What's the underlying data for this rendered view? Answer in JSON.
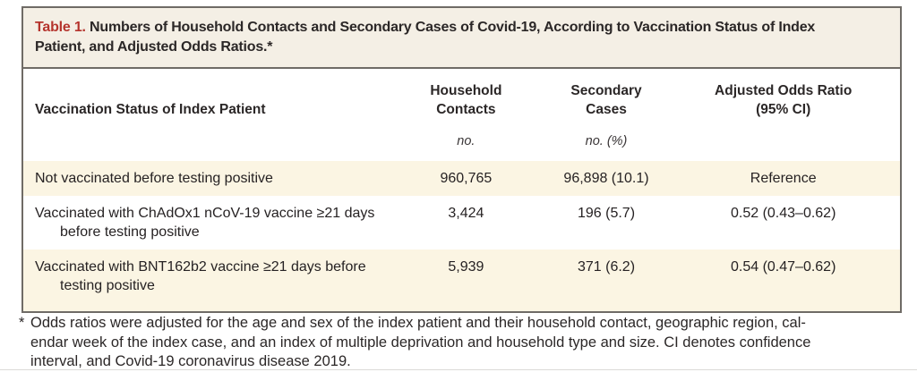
{
  "table": {
    "title": {
      "label": "Table 1.",
      "line1": "Numbers of Household Contacts and Secondary Cases of Covid-19, According to Vaccination Status of Index",
      "line2": "Patient, and Adjusted Odds Ratios.*"
    },
    "columns": {
      "col1": "Vaccination Status of Index Patient",
      "col2_line1": "Household",
      "col2_line2": "Contacts",
      "col3_line1": "Secondary",
      "col3_line2": "Cases",
      "col4_line1": "Adjusted Odds Ratio",
      "col4_line2": "(95% CI)",
      "col2_unit": "no.",
      "col3_unit": "no. (%)"
    },
    "rows": [
      {
        "label_line1": "Not vaccinated before testing positive",
        "label_line2": "",
        "contacts": "960,765",
        "secondary": "96,898 (10.1)",
        "odds": "Reference"
      },
      {
        "label_line1": "Vaccinated with ChAdOx1 nCoV-19 vaccine ≥21 days",
        "label_line2": "before testing positive",
        "contacts": "3,424",
        "secondary": "196 (5.7)",
        "odds": "0.52 (0.43–0.62)"
      },
      {
        "label_line1": "Vaccinated with BNT162b2 vaccine ≥21 days before",
        "label_line2": "testing positive",
        "contacts": "5,939",
        "secondary": "371 (6.2)",
        "odds": "0.54 (0.47–0.62)"
      }
    ]
  },
  "footnote": {
    "marker": "*",
    "line1": "Odds ratios were adjusted for the age and sex of the index patient and their household contact, geographic region, cal-",
    "line2": "endar week of the index case, and an index of multiple deprivation and household type and size. CI denotes confidence",
    "line3": "interval, and Covid-19 coronavirus disease 2019."
  },
  "colors": {
    "accent_red": "#b5342d",
    "title_band_bg": "#f4efe5",
    "row_shade_bg": "#fbf5e3",
    "border_gray": "#6f6b66"
  },
  "chart_data": {
    "type": "table",
    "title": "Table 1. Numbers of Household Contacts and Secondary Cases of Covid-19, According to Vaccination Status of Index Patient, and Adjusted Odds Ratios.*",
    "columns": [
      "Vaccination Status of Index Patient",
      "Household Contacts (no.)",
      "Secondary Cases (no. (%))",
      "Adjusted Odds Ratio (95% CI)"
    ],
    "rows": [
      [
        "Not vaccinated before testing positive",
        "960,765",
        "96,898 (10.1)",
        "Reference"
      ],
      [
        "Vaccinated with ChAdOx1 nCoV-19 vaccine ≥21 days before testing positive",
        "3,424",
        "196 (5.7)",
        "0.52 (0.43–0.62)"
      ],
      [
        "Vaccinated with BNT162b2 vaccine ≥21 days before testing positive",
        "5,939",
        "371 (6.2)",
        "0.54 (0.47–0.62)"
      ]
    ]
  }
}
